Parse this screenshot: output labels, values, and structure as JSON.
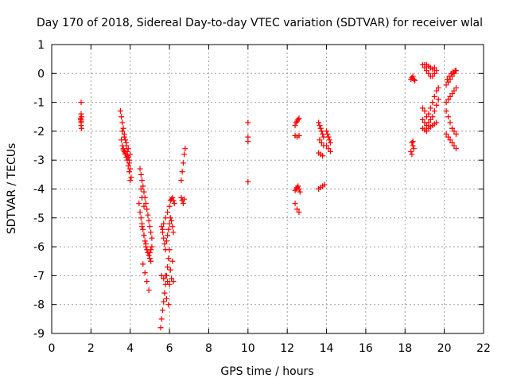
{
  "chart_data": {
    "type": "scatter",
    "title": "Day 170 of 2018, Sidereal Day-to-day VTEC variation (SDTVAR) for receiver wlal",
    "xlabel": "GPS time / hours",
    "ylabel": "SDTVAR / TECUs",
    "xlim": [
      0,
      22
    ],
    "ylim": [
      -9,
      1
    ],
    "xticks": [
      "0",
      "2",
      "4",
      "6",
      "8",
      "10",
      "12",
      "14",
      "16",
      "18",
      "20",
      "22"
    ],
    "yticks": [
      "1",
      "0",
      "-1",
      "-2",
      "-3",
      "-4",
      "-5",
      "-6",
      "-7",
      "-8",
      "-9"
    ],
    "grid": true,
    "marker": "+",
    "color": "#ff0000",
    "series": [
      {
        "name": "SDTVAR",
        "x": [
          1.5,
          1.5,
          1.52,
          1.48,
          1.5,
          1.5,
          1.52,
          1.48,
          1.5,
          3.5,
          3.55,
          3.6,
          3.65,
          3.7,
          3.75,
          3.8,
          3.85,
          3.9,
          3.95,
          4.0,
          4.05,
          3.55,
          3.6,
          3.65,
          3.7,
          3.75,
          3.8,
          3.85,
          3.9,
          3.95,
          4.0,
          3.6,
          3.7,
          3.8,
          3.9,
          4.0,
          3.65,
          3.75,
          3.85,
          3.95,
          4.5,
          4.55,
          4.6,
          4.65,
          4.7,
          4.75,
          4.8,
          4.85,
          4.9,
          4.95,
          5.0,
          5.05,
          5.1,
          4.45,
          4.5,
          4.55,
          4.6,
          4.65,
          4.7,
          4.75,
          4.8,
          4.85,
          4.9,
          4.95,
          5.0,
          5.05,
          5.1,
          4.6,
          4.7,
          4.8,
          4.9,
          5.0,
          4.65,
          4.75,
          4.85,
          4.95,
          5.05,
          4.55,
          4.6,
          4.7,
          5.55,
          5.6,
          5.65,
          5.7,
          5.75,
          5.8,
          5.85,
          5.9,
          5.95,
          6.0,
          5.65,
          5.7,
          5.8,
          5.9,
          6.0,
          6.05,
          6.1,
          6.15,
          6.2,
          6.25,
          5.6,
          5.7,
          5.8,
          5.9,
          6.0,
          6.1,
          6.2,
          5.75,
          5.85,
          5.95,
          6.05,
          6.15,
          5.6,
          5.65,
          5.7,
          5.75,
          5.8,
          5.85,
          5.9,
          5.95,
          6.0,
          6.05,
          6.1,
          6.15,
          6.2,
          6.6,
          6.65,
          6.7,
          6.75,
          6.8,
          6.6,
          6.65,
          6.7,
          6.75,
          10.0,
          10.0,
          10.0,
          10.0,
          12.4,
          12.45,
          12.5,
          12.55,
          12.6,
          12.4,
          12.5,
          12.6,
          12.4,
          12.45,
          12.5,
          12.55,
          12.6,
          12.65,
          12.4,
          12.5,
          12.6,
          13.6,
          13.65,
          13.7,
          13.75,
          13.8,
          13.85,
          13.6,
          13.7,
          13.8,
          13.6,
          13.7,
          13.8,
          13.9,
          13.65,
          13.75,
          13.85,
          14.0,
          14.05,
          14.1,
          14.15,
          14.2,
          14.0,
          14.1,
          14.2,
          18.3,
          18.35,
          18.4,
          18.45,
          18.5,
          18.35,
          18.4,
          18.45,
          18.3,
          18.35,
          18.4,
          18.9,
          19.0,
          19.1,
          19.2,
          19.3,
          19.4,
          19.5,
          19.6,
          19.0,
          19.1,
          19.2,
          19.3,
          19.4,
          19.5,
          18.9,
          19.0,
          19.1,
          19.2,
          19.3,
          19.4,
          19.5,
          19.6,
          19.7,
          18.9,
          19.0,
          19.1,
          19.2,
          19.3,
          19.4,
          19.5,
          19.6,
          19.7,
          18.9,
          19.0,
          19.1,
          19.2,
          19.3,
          19.4,
          19.5,
          19.6,
          20.1,
          20.2,
          20.3,
          20.4,
          20.5,
          20.6,
          20.1,
          20.2,
          20.3,
          20.4,
          20.5,
          20.6,
          20.1,
          20.2,
          20.3,
          20.4,
          20.5,
          20.6,
          20.1,
          20.2,
          20.3,
          20.4,
          20.5,
          20.6,
          20.15,
          20.25,
          20.35,
          20.45,
          20.55
        ],
        "y": [
          -1.0,
          -1.4,
          -1.5,
          -1.6,
          -1.7,
          -1.8,
          -1.9,
          -1.55,
          -1.65,
          -1.3,
          -1.5,
          -1.7,
          -1.9,
          -2.1,
          -2.3,
          -2.5,
          -2.7,
          -2.9,
          -3.1,
          -3.3,
          -3.6,
          -2.3,
          -2.5,
          -2.6,
          -2.7,
          -2.8,
          -2.9,
          -3.0,
          -3.2,
          -3.4,
          -3.7,
          -2.0,
          -2.2,
          -2.4,
          -2.6,
          -2.8,
          -2.65,
          -2.75,
          -2.85,
          -3.0,
          -3.3,
          -3.5,
          -3.7,
          -3.9,
          -4.1,
          -4.3,
          -4.5,
          -4.7,
          -4.9,
          -5.1,
          -5.3,
          -5.5,
          -5.7,
          -4.5,
          -4.8,
          -5.0,
          -5.2,
          -5.4,
          -5.6,
          -5.8,
          -6.0,
          -6.1,
          -6.2,
          -6.3,
          -6.2,
          -6.1,
          -6.0,
          -5.3,
          -5.6,
          -5.9,
          -6.2,
          -6.4,
          -6.6,
          -6.9,
          -7.2,
          -7.5,
          -6.5,
          -4.0,
          -4.3,
          -4.6,
          -8.8,
          -8.5,
          -8.2,
          -7.9,
          -7.6,
          -7.3,
          -7.0,
          -6.7,
          -6.4,
          -6.1,
          -5.4,
          -5.2,
          -5.0,
          -4.8,
          -4.6,
          -4.4,
          -4.35,
          -4.3,
          -4.4,
          -4.5,
          -7.0,
          -7.1,
          -7.0,
          -7.2,
          -7.3,
          -7.1,
          -7.2,
          -7.6,
          -7.8,
          -8.0,
          -6.8,
          -6.5,
          -5.3,
          -5.5,
          -5.7,
          -5.9,
          -6.1,
          -5.8,
          -5.6,
          -5.4,
          -5.2,
          -5.0,
          -5.1,
          -5.3,
          -5.5,
          -3.7,
          -3.4,
          -3.1,
          -2.8,
          -2.6,
          -4.3,
          -4.4,
          -4.5,
          -4.35,
          -1.7,
          -2.2,
          -2.35,
          -3.75,
          -1.8,
          -1.7,
          -1.65,
          -1.6,
          -1.55,
          -2.15,
          -2.2,
          -2.15,
          -4.05,
          -4.0,
          -3.95,
          -3.9,
          -4.0,
          -4.1,
          -4.5,
          -4.7,
          -4.8,
          -1.7,
          -1.8,
          -1.9,
          -2.0,
          -2.1,
          -2.2,
          -2.75,
          -2.8,
          -2.85,
          -4.0,
          -3.95,
          -3.9,
          -3.85,
          -2.3,
          -2.4,
          -2.5,
          -2.0,
          -2.1,
          -2.2,
          -2.3,
          -2.4,
          -2.5,
          -2.6,
          -2.7,
          -0.2,
          -0.15,
          -0.1,
          -0.2,
          -0.25,
          -2.4,
          -2.5,
          -2.6,
          -2.7,
          -2.8,
          -2.35,
          0.3,
          0.2,
          0.1,
          0.0,
          -0.1,
          -0.1,
          0.0,
          0.1,
          0.3,
          0.3,
          0.25,
          0.2,
          0.15,
          0.2,
          -1.2,
          -1.3,
          -1.5,
          -1.4,
          -1.2,
          -1.0,
          -0.8,
          -0.6,
          -0.5,
          -1.6,
          -1.7,
          -1.8,
          -1.7,
          -1.6,
          -1.5,
          -1.3,
          -1.1,
          -0.9,
          -1.9,
          -1.95,
          -2.0,
          -1.9,
          -1.85,
          -1.8,
          -1.75,
          -1.7,
          -0.4,
          -0.3,
          -0.2,
          -0.1,
          0.0,
          0.1,
          -1.0,
          -0.9,
          -0.8,
          -0.7,
          -0.6,
          -0.5,
          -1.3,
          -1.5,
          -1.7,
          -1.9,
          -2.0,
          -2.1,
          -2.1,
          -2.2,
          -2.3,
          -2.4,
          -2.5,
          -2.6,
          -0.2,
          -0.1,
          0.0,
          0.05,
          0.1
        ]
      }
    ]
  }
}
